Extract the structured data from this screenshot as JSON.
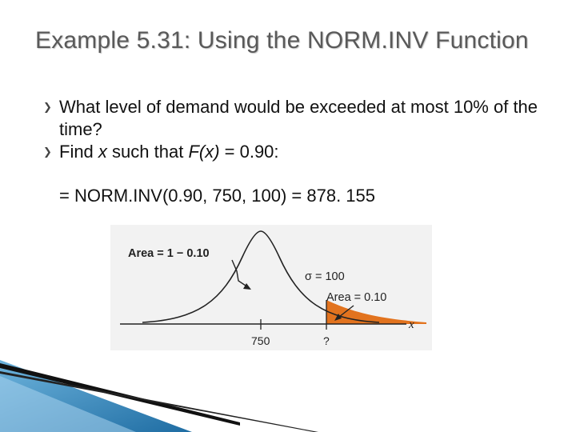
{
  "slide": {
    "title": "Example 5.31: Using the NORM.INV Function",
    "bullets": [
      {
        "text": "What level of demand would be exceeded at most 10% of the time?"
      },
      {
        "prefix": "Find ",
        "var": "x",
        "middle": " such that ",
        "fx": "F(x)",
        "suffix": " = 0.90:"
      }
    ],
    "formula": "= NORM.INV(0.90, 750, 100) = 878. 155"
  },
  "figure": {
    "area_left_label": "Area = 1 − 0.10",
    "sigma_label": "σ = 100",
    "area_right_label": "Area = 0.10",
    "x_axis_label": "x",
    "mean_tick_label": "750",
    "unknown_tick_label": "?",
    "tail_color": "#e2731e",
    "curve_color": "#222222"
  },
  "decoration": {
    "accent_color": "#2f7fb5"
  }
}
